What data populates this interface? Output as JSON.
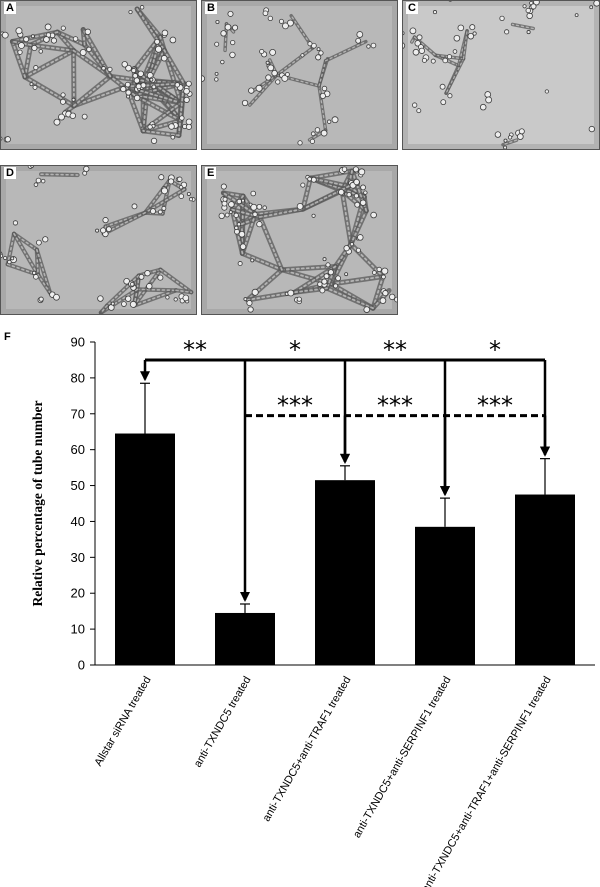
{
  "panels": [
    {
      "label": "A",
      "cells": "dense"
    },
    {
      "label": "B",
      "cells": "sparse"
    },
    {
      "label": "C",
      "cells": "sparse"
    },
    {
      "label": "D",
      "cells": "medium"
    },
    {
      "label": "E",
      "cells": "dense"
    }
  ],
  "figure_label": "F",
  "chart_data": {
    "type": "bar",
    "categories": [
      "Allstar siRNA treated",
      "anti-TXNDC5 treated",
      "anti-TXNDC5+anti-TRAF1  treated",
      "anti-TXNDC5+anti-SERPINF1  treated",
      "anti-TXNDC5+anti-TRAF1+anti-SERPINF1  treated"
    ],
    "values": [
      64.5,
      14.5,
      51.5,
      38.5,
      47.5
    ],
    "errors": [
      14,
      2.5,
      4,
      8,
      10
    ],
    "ylabel": "Relative percentage  of tube number",
    "ylim": [
      0,
      90
    ],
    "yticks": [
      0,
      10,
      20,
      30,
      40,
      50,
      60,
      70,
      80,
      90
    ],
    "bar_color": "#000000",
    "significance": {
      "solid": {
        "level": 85,
        "from": 0,
        "drops": [
          0,
          1,
          2,
          3,
          4
        ],
        "labels": [
          {
            "text": "**",
            "between": [
              0,
              1
            ]
          },
          {
            "text": "*",
            "between": [
              1,
              2
            ]
          },
          {
            "text": "**",
            "between": [
              2,
              3
            ]
          },
          {
            "text": "*",
            "between": [
              3,
              4
            ]
          }
        ]
      },
      "dashed": {
        "level": 69.5,
        "from": 1,
        "drops": [
          2,
          3,
          4
        ],
        "labels": [
          {
            "text": "***",
            "between": [
              1,
              2
            ]
          },
          {
            "text": "***",
            "between": [
              2,
              3
            ]
          },
          {
            "text": "***",
            "between": [
              3,
              4
            ]
          }
        ]
      }
    }
  }
}
